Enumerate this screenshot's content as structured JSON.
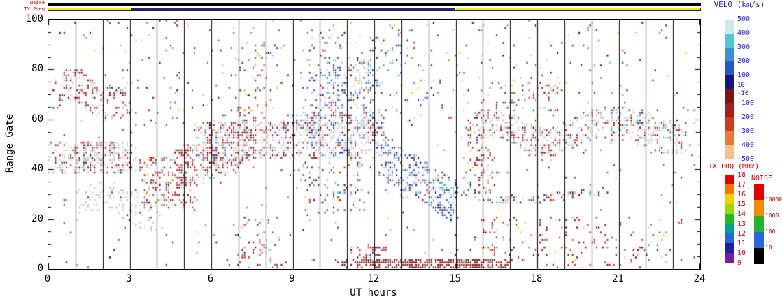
{
  "header": {
    "noise_bar_label": "Noise",
    "txfreq_bar_label": "TX Freq"
  },
  "chart_data": {
    "type": "rti_scatter",
    "description": "Radar range-time plot of line-of-sight velocity with ground scatter (gray)",
    "xlabel": "UT hours",
    "ylabel": "Range Gate",
    "x_range": [
      0,
      24
    ],
    "y_range": [
      0,
      100
    ],
    "x_ticks": [
      "0",
      "3",
      "6",
      "9",
      "12",
      "15",
      "18",
      "21",
      "24"
    ],
    "y_ticks": [
      "0",
      "20",
      "40",
      "60",
      "80",
      "100"
    ],
    "hour_gridlines_every": 1,
    "noise_bar_segments": [
      {
        "from": 0,
        "to": 24,
        "color": "#000000"
      }
    ],
    "txfreq_bar_segments": [
      {
        "from": 0,
        "to": 3.05,
        "color": "#f0f000"
      },
      {
        "from": 3.05,
        "to": 15.0,
        "color": "#26267e"
      },
      {
        "from": 15.0,
        "to": 24,
        "color": "#f0f000"
      }
    ],
    "colorbars": {
      "velocity": {
        "title": "VELO (km/s)",
        "title_color": "#2222cc",
        "labels": [
          "500",
          "400",
          "300",
          "200",
          "100",
          "10",
          "-10",
          "-100",
          "-200",
          "-300",
          "-400",
          "-500"
        ],
        "label_color": "#2222cc",
        "segment_colors": [
          "#cde9e9",
          "#53c6d2",
          "#3f8fd2",
          "#2b55c8",
          "#16167d",
          "#7c1616",
          "#a51f1f",
          "#cc3d1e",
          "#e8793a",
          "#f2c18e"
        ]
      },
      "tx_frequency": {
        "title": "TX FRQ (MHz)",
        "title_color": "#cc0000",
        "labels": [
          "18",
          "17",
          "16",
          "15",
          "14",
          "13",
          "12",
          "11",
          "10",
          "9"
        ],
        "label_color": "#cc0000",
        "segment_colors": [
          "#e00000",
          "#f07800",
          "#f0d200",
          "#96dc00",
          "#28b428",
          "#00a08c",
          "#2864dc",
          "#1e1ea0",
          "#781e9b"
        ]
      },
      "noise": {
        "title": "NOISE",
        "title_color": "#cc0000",
        "labels": [
          "10000",
          "1000",
          "100",
          "10"
        ],
        "label_color": "#cc0000",
        "segment_colors": [
          "#e00000",
          "#f08c00",
          "#28b428",
          "#2864dc",
          "#000000"
        ]
      }
    },
    "scatter": {
      "seed": 1337,
      "grid": {
        "time_steps": 300,
        "gates": 100
      },
      "base_density": 0.012,
      "palettes": {
        "red": [
          "#7a1010",
          "#8f1414",
          "#a51f1f",
          "#b43232",
          "#cc3d1e"
        ],
        "blue": [
          "#16167d",
          "#1e2ea0",
          "#2b55c8",
          "#3f8fd2",
          "#53c6d2"
        ],
        "gray": [
          "#c0c0c0",
          "#c8c8c8",
          "#d2d2d2",
          "#bababa"
        ],
        "warm": [
          "#e8793a",
          "#f2c18e",
          "#f0d200"
        ],
        "dark_red": "#7a1010"
      },
      "features": [
        {
          "t0": 0.0,
          "t1": 3.3,
          "g0": 38,
          "g1": 50,
          "d": 0.5,
          "type": "gs_red"
        },
        {
          "t0": 0.2,
          "t1": 3.2,
          "g0": 62,
          "g1": 76,
          "d": 0.3,
          "type": "red_gs",
          "wave": 4,
          "wfreq": 2.2
        },
        {
          "t0": 1.0,
          "t1": 4.3,
          "g0": 18,
          "g1": 30,
          "d": 0.22,
          "type": "gs",
          "wave": 5,
          "wfreq": 1.5
        },
        {
          "t0": 3.2,
          "t1": 5.6,
          "g0": 24,
          "g1": 44,
          "d": 0.3,
          "type": "red_mix"
        },
        {
          "t0": 4.4,
          "t1": 7.6,
          "g0": 28,
          "g1": 46,
          "d": 0.45,
          "type": "red_gs",
          "slope": 4.5
        },
        {
          "t0": 5.4,
          "t1": 9.6,
          "g0": 44,
          "g1": 58,
          "d": 0.5,
          "type": "gs_red"
        },
        {
          "t0": 6.8,
          "t1": 8.2,
          "g0": 55,
          "g1": 90,
          "d": 0.15,
          "type": "red_mix"
        },
        {
          "t0": 6.5,
          "t1": 9.0,
          "g0": 0,
          "g1": 20,
          "d": 0.12,
          "type": "mix"
        },
        {
          "t0": 9.0,
          "t1": 12.6,
          "g0": 44,
          "g1": 62,
          "d": 0.5,
          "type": "gs_mix"
        },
        {
          "t0": 9.6,
          "t1": 12.4,
          "g0": 58,
          "g1": 84,
          "d": 0.28,
          "type": "blue_mix"
        },
        {
          "t0": 10.2,
          "t1": 10.8,
          "g0": 55,
          "g1": 80,
          "d": 0.4,
          "type": "blue"
        },
        {
          "t0": 9.0,
          "t1": 12.0,
          "g0": 22,
          "g1": 42,
          "d": 0.15,
          "type": "mix"
        },
        {
          "t0": 9.0,
          "t1": 14.5,
          "g0": 62,
          "g1": 95,
          "d": 0.1,
          "type": "blue_mix"
        },
        {
          "t0": 12.0,
          "t1": 15.2,
          "g0": 38,
          "g1": 56,
          "d": 0.4,
          "type": "blue",
          "slope": -7
        },
        {
          "t0": 10.5,
          "t1": 17.2,
          "g0": 0,
          "g1": 3,
          "d": 0.75,
          "type": "dark_red"
        },
        {
          "t0": 11.0,
          "t1": 12.6,
          "g0": 0,
          "g1": 8,
          "d": 0.35,
          "type": "red_mix"
        },
        {
          "t0": 13.0,
          "t1": 20.6,
          "g0": 27,
          "g1": 30,
          "d": 0.45,
          "type": "gs_mix",
          "wave": 2,
          "wfreq": 1.1
        },
        {
          "t0": 15.3,
          "t1": 16.5,
          "g0": 30,
          "g1": 60,
          "d": 0.22,
          "type": "red_mix"
        },
        {
          "t0": 15.4,
          "t1": 20.8,
          "g0": 48,
          "g1": 60,
          "d": 0.4,
          "type": "gs_red",
          "wave": 4,
          "wfreq": 1.6
        },
        {
          "t0": 16.2,
          "t1": 19.0,
          "g0": 60,
          "g1": 74,
          "d": 0.18,
          "type": "red_mix"
        },
        {
          "t0": 20.4,
          "t1": 23.8,
          "g0": 48,
          "g1": 62,
          "d": 0.38,
          "type": "gs_red",
          "wave": 3,
          "wfreq": 1.8
        },
        {
          "t0": 14.5,
          "t1": 24.0,
          "g0": 0,
          "g1": 20,
          "d": 0.1,
          "type": "red_mix"
        },
        {
          "t0": 0.0,
          "t1": 24.0,
          "g0": 55,
          "g1": 100,
          "d": 0.035,
          "type": "mix"
        }
      ]
    }
  }
}
